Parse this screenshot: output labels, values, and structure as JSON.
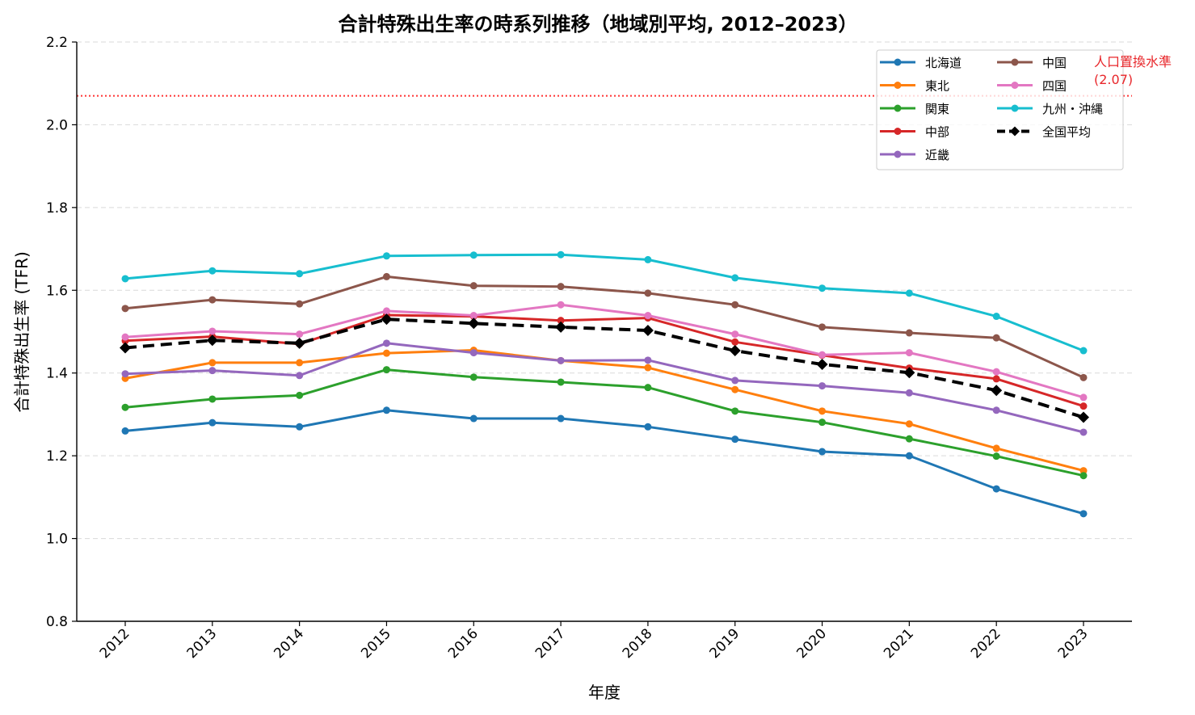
{
  "chart_data": {
    "type": "line",
    "title": "合計特殊出生率の時系列推移（地域別平均, 2012–2023）",
    "xlabel": "年度",
    "ylabel": "合計特殊出生率 (TFR)",
    "ylim": [
      0.8,
      2.2
    ],
    "yticks": [
      "0.8",
      "1.0",
      "1.2",
      "1.4",
      "1.6",
      "1.8",
      "2.0",
      "2.2"
    ],
    "grid": "horizontal dashed",
    "legend_position": "top-right",
    "categories": [
      "2012",
      "2013",
      "2014",
      "2015",
      "2016",
      "2017",
      "2018",
      "2019",
      "2020",
      "2021",
      "2022",
      "2023"
    ],
    "reference_line": {
      "value": 2.07,
      "label_line1": "人口置換水準",
      "label_line2": "(2.07)",
      "color": "#ff3333"
    },
    "series": [
      {
        "name": "北海道",
        "color": "#1f77b4",
        "style": "solid",
        "marker": "circle",
        "values": [
          1.26,
          1.28,
          1.27,
          1.31,
          1.29,
          1.29,
          1.27,
          1.24,
          1.21,
          1.2,
          1.12,
          1.06
        ]
      },
      {
        "name": "東北",
        "color": "#ff7f0e",
        "style": "solid",
        "marker": "circle",
        "values": [
          1.387,
          1.425,
          1.425,
          1.448,
          1.455,
          1.43,
          1.413,
          1.36,
          1.308,
          1.277,
          1.218,
          1.164
        ]
      },
      {
        "name": "関東",
        "color": "#2ca02c",
        "style": "solid",
        "marker": "circle",
        "values": [
          1.317,
          1.337,
          1.346,
          1.408,
          1.39,
          1.378,
          1.365,
          1.308,
          1.281,
          1.241,
          1.199,
          1.152
        ]
      },
      {
        "name": "中部",
        "color": "#d62728",
        "style": "solid",
        "marker": "circle",
        "values": [
          1.478,
          1.488,
          1.47,
          1.54,
          1.537,
          1.527,
          1.533,
          1.475,
          1.443,
          1.412,
          1.386,
          1.32
        ]
      },
      {
        "name": "近畿",
        "color": "#9467bd",
        "style": "solid",
        "marker": "circle",
        "values": [
          1.398,
          1.406,
          1.394,
          1.472,
          1.449,
          1.43,
          1.431,
          1.382,
          1.369,
          1.352,
          1.31,
          1.257
        ]
      },
      {
        "name": "中国",
        "color": "#8c564b",
        "style": "solid",
        "marker": "circle",
        "values": [
          1.556,
          1.577,
          1.567,
          1.633,
          1.611,
          1.609,
          1.593,
          1.565,
          1.511,
          1.497,
          1.485,
          1.389
        ]
      },
      {
        "name": "四国",
        "color": "#e377c2",
        "style": "solid",
        "marker": "circle",
        "values": [
          1.487,
          1.501,
          1.494,
          1.55,
          1.539,
          1.565,
          1.539,
          1.494,
          1.444,
          1.449,
          1.403,
          1.341
        ]
      },
      {
        "name": "九州・沖縄",
        "color": "#17becf",
        "style": "solid",
        "marker": "circle",
        "values": [
          1.628,
          1.647,
          1.64,
          1.683,
          1.685,
          1.686,
          1.674,
          1.63,
          1.605,
          1.593,
          1.537,
          1.454
        ]
      },
      {
        "name": "全国平均",
        "color": "#000000",
        "style": "dashed",
        "marker": "diamond",
        "values": [
          1.461,
          1.479,
          1.472,
          1.53,
          1.52,
          1.511,
          1.503,
          1.454,
          1.421,
          1.401,
          1.358,
          1.293
        ]
      }
    ]
  }
}
